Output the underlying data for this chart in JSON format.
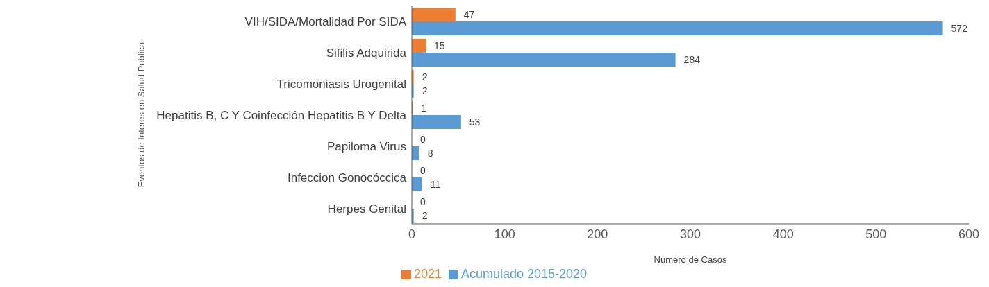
{
  "chart_data": {
    "type": "bar",
    "orientation": "horizontal",
    "xlabel": "Numero de Casos",
    "ylabel": "Eventos de Interes en Salud Publica",
    "categories": [
      "VIH/SIDA/Mortalidad Por SIDA",
      "Sifilis Adquirida",
      "Tricomoniasis Urogenital",
      "Hepatitis B, C Y Coinfección Hepatitis B Y Delta",
      "Papiloma Virus",
      "Infeccion Gonocóccica",
      "Herpes Genital"
    ],
    "series": [
      {
        "name": "2021",
        "color": "#ed7d31",
        "values": [
          47,
          15,
          2,
          1,
          0,
          0,
          0
        ]
      },
      {
        "name": "Acumulado 2015-2020",
        "color": "#5b9bd5",
        "values": [
          572,
          284,
          2,
          53,
          8,
          11,
          2
        ]
      }
    ],
    "xlim": [
      0,
      600
    ],
    "xticks": [
      0,
      100,
      200,
      300,
      400,
      500,
      600
    ],
    "grid": false,
    "legend": "bottom",
    "data_labels": true
  }
}
